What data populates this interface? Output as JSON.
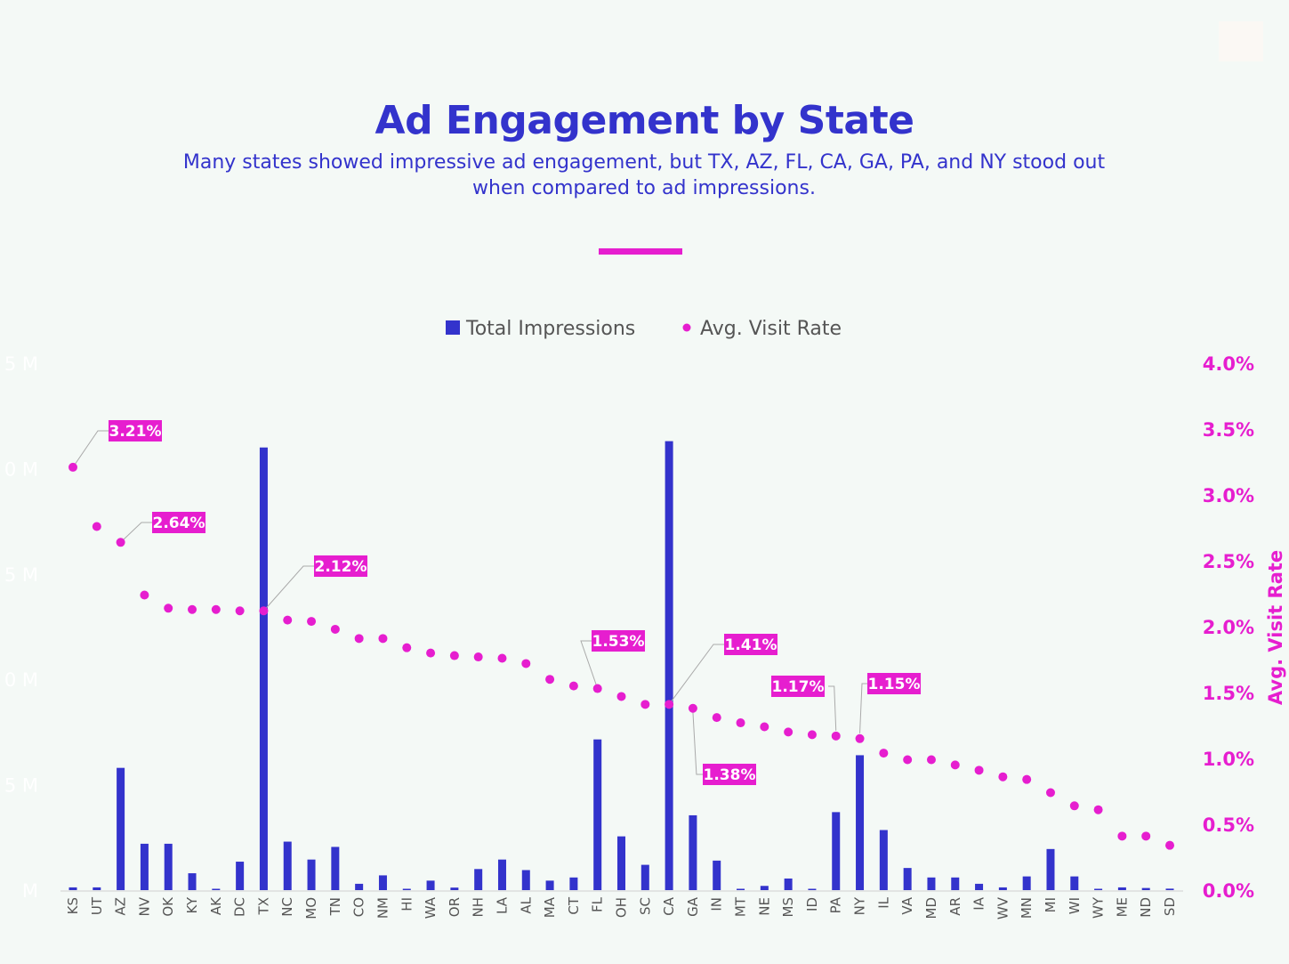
{
  "title": "Ad Engagement by State",
  "subtitle": "Many states showed impressive ad engagement, but TX, AZ, FL, CA, GA, PA, and NY stood out when compared to ad impressions.",
  "colors": {
    "bars": "#3333cc",
    "points": "#e61ecf",
    "title": "#3333cc"
  },
  "chart_data": {
    "type": "bar+scatter",
    "title": "Ad Engagement by State",
    "legend": {
      "position": "top",
      "entries": [
        "Total Impressions",
        "Avg. Visit Rate"
      ]
    },
    "categories": [
      "KS",
      "UT",
      "AZ",
      "NV",
      "OK",
      "KY",
      "AK",
      "DC",
      "TX",
      "NC",
      "MO",
      "TN",
      "CO",
      "NM",
      "HI",
      "WA",
      "OR",
      "NH",
      "LA",
      "AL",
      "MA",
      "CT",
      "FL",
      "OH",
      "SC",
      "CA",
      "GA",
      "IN",
      "MT",
      "NE",
      "MS",
      "ID",
      "PA",
      "NY",
      "IL",
      "VA",
      "MD",
      "AR",
      "IA",
      "WV",
      "MN",
      "MI",
      "WI",
      "WY",
      "ME",
      "ND",
      "SD"
    ],
    "series": [
      {
        "name": "Total Impressions",
        "axis": "left",
        "unit": "M",
        "values": [
          0.13,
          0.13,
          5.8,
          2.2,
          2.2,
          0.8,
          0.05,
          1.35,
          21.0,
          2.3,
          1.45,
          2.05,
          0.3,
          0.7,
          0.05,
          0.45,
          0.12,
          1.0,
          1.45,
          0.95,
          0.45,
          0.6,
          7.15,
          2.55,
          1.2,
          21.3,
          3.55,
          1.4,
          0.03,
          0.2,
          0.55,
          0.04,
          3.7,
          6.4,
          2.85,
          1.05,
          0.6,
          0.6,
          0.3,
          0.13,
          0.65,
          1.95,
          0.65,
          0.03,
          0.13,
          0.1,
          0.07
        ]
      },
      {
        "name": "Avg. Visit Rate",
        "axis": "right",
        "unit": "%",
        "values": [
          3.21,
          2.76,
          2.64,
          2.24,
          2.14,
          2.13,
          2.13,
          2.12,
          2.12,
          2.05,
          2.04,
          1.98,
          1.91,
          1.91,
          1.84,
          1.8,
          1.78,
          1.77,
          1.76,
          1.72,
          1.6,
          1.55,
          1.53,
          1.47,
          1.41,
          1.41,
          1.38,
          1.31,
          1.27,
          1.24,
          1.2,
          1.18,
          1.17,
          1.15,
          1.04,
          0.99,
          0.99,
          0.95,
          0.91,
          0.86,
          0.84,
          0.74,
          0.64,
          0.61,
          0.41,
          0.41,
          0.34
        ]
      }
    ],
    "data_labels": [
      {
        "state": "KS",
        "text": "3.21%"
      },
      {
        "state": "AZ",
        "text": "2.64%"
      },
      {
        "state": "TX",
        "text": "2.12%"
      },
      {
        "state": "FL",
        "text": "1.53%"
      },
      {
        "state": "CA",
        "text": "1.41%"
      },
      {
        "state": "GA",
        "text": "1.38%"
      },
      {
        "state": "PA",
        "text": "1.17%"
      },
      {
        "state": "NY",
        "text": "1.15%"
      }
    ],
    "left_axis": {
      "range": [
        0,
        25
      ],
      "ticks": [
        "M",
        "5 M",
        "0 M",
        "5 M",
        "0 M",
        "5 M"
      ]
    },
    "right_axis": {
      "label": "Avg. Visit Rate",
      "range": [
        0,
        4
      ],
      "ticks": [
        "0.0%",
        "0.5%",
        "1.0%",
        "1.5%",
        "2.0%",
        "2.5%",
        "3.0%",
        "3.5%",
        "4.0%"
      ]
    },
    "grid": false
  }
}
